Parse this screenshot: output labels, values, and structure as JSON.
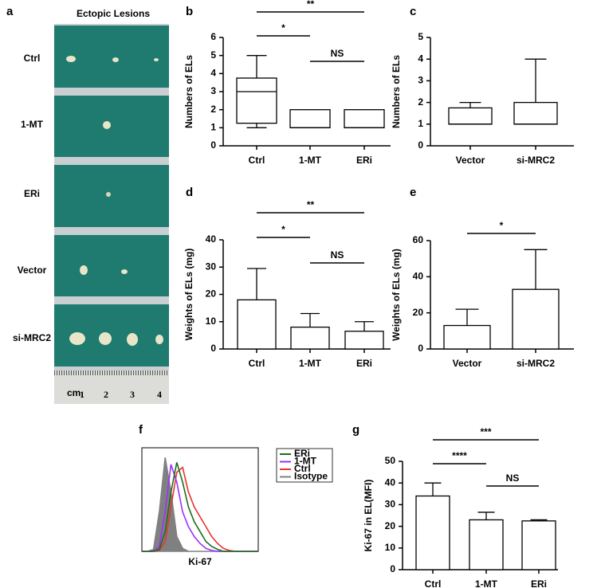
{
  "photo_panel": {
    "panel_label": "a",
    "title": "Ectopic Lesions",
    "rows": [
      "Ctrl",
      "1-MT",
      "ERi",
      "Vector",
      "si-MRC2"
    ],
    "ruler": {
      "unit": "cm",
      "numbers": [
        "1",
        "2",
        "3",
        "4"
      ]
    }
  },
  "chart_data": [
    {
      "type": "box",
      "panel_label": "b",
      "y_label": "Numbers of ELs",
      "categories": [
        "Ctrl",
        "1-MT",
        "ERi"
      ],
      "boxes": [
        {
          "min": 1,
          "q1": 1.25,
          "median": 3,
          "q3": 3.75,
          "max": 5
        },
        {
          "min": 1,
          "q1": 1,
          "median": 1,
          "q3": 2,
          "max": 2
        },
        {
          "min": 1,
          "q1": 1,
          "median": 1,
          "q3": 2,
          "max": 2
        }
      ],
      "ylim": [
        0,
        6
      ],
      "yticks": [
        0,
        1,
        2,
        3,
        4,
        5,
        6
      ],
      "color": "#000000",
      "annotations": [
        "**",
        "*",
        "NS"
      ]
    },
    {
      "type": "box",
      "panel_label": "c",
      "y_label": "Numbers of ELs",
      "categories": [
        "Vector",
        "si-MRC2"
      ],
      "boxes": [
        {
          "min": 1,
          "q1": 1,
          "median": 1,
          "q3": 1.75,
          "max": 2
        },
        {
          "min": 1,
          "q1": 1,
          "median": 1,
          "q3": 2,
          "max": 4
        }
      ],
      "ylim": [
        0,
        5
      ],
      "yticks": [
        0,
        1,
        2,
        3,
        4,
        5
      ],
      "color": "#000000",
      "annotations": []
    },
    {
      "type": "bar",
      "panel_label": "d",
      "y_label": "Weights of ELs (mg)",
      "categories": [
        "Ctrl",
        "1-MT",
        "ERi"
      ],
      "values": [
        18,
        8,
        6.5
      ],
      "errors": [
        11.5,
        5,
        3.5
      ],
      "ylim": [
        0,
        40
      ],
      "yticks": [
        0,
        10,
        20,
        30,
        40
      ],
      "color": "#000000",
      "annotations": [
        "**",
        "*",
        "NS"
      ]
    },
    {
      "type": "bar",
      "panel_label": "e",
      "y_label": "Weights of ELs (mg)",
      "categories": [
        "Vector",
        "si-MRC2"
      ],
      "values": [
        13,
        33
      ],
      "errors": [
        9,
        22
      ],
      "ylim": [
        0,
        60
      ],
      "yticks": [
        0,
        20,
        40,
        60
      ],
      "color": "#000000",
      "annotations": [
        "*"
      ]
    },
    {
      "type": "line",
      "panel_label": "f",
      "x_label": "Ki-67",
      "x": [
        0,
        5,
        10,
        15,
        20,
        25,
        30,
        35,
        40,
        45,
        50,
        55,
        60,
        65,
        70,
        75,
        80,
        85,
        90,
        95,
        100
      ],
      "xlim": [
        0,
        100
      ],
      "ylim": [
        0,
        100
      ],
      "series": [
        {
          "name": "ERi",
          "color": "#1a6e1a",
          "values": [
            0,
            0,
            0,
            2,
            20,
            60,
            90,
            70,
            45,
            30,
            20,
            10,
            5,
            2,
            0,
            0,
            0,
            0,
            0,
            0,
            0
          ]
        },
        {
          "name": "1-MT",
          "color": "#9b30ff",
          "values": [
            0,
            0,
            0,
            5,
            40,
            88,
            70,
            40,
            25,
            15,
            8,
            3,
            1,
            0,
            0,
            0,
            0,
            0,
            0,
            0,
            0
          ]
        },
        {
          "name": "Ctrl",
          "color": "#e8332e",
          "values": [
            0,
            0,
            0,
            1,
            10,
            45,
            80,
            85,
            60,
            45,
            35,
            25,
            15,
            8,
            3,
            1,
            0,
            0,
            0,
            0,
            0
          ]
        },
        {
          "name": "Isotype",
          "color": "#808080",
          "fill": true,
          "values": [
            0,
            0,
            2,
            40,
            95,
            60,
            15,
            3,
            0,
            0,
            0,
            0,
            0,
            0,
            0,
            0,
            0,
            0,
            0,
            0,
            0
          ]
        }
      ]
    },
    {
      "type": "bar",
      "panel_label": "g",
      "y_label": "Ki-67 in EL(MFI)",
      "categories": [
        "Ctrl",
        "1-MT",
        "ERi"
      ],
      "values": [
        34,
        23,
        22.5
      ],
      "errors": [
        6,
        3.5,
        0.5
      ],
      "ylim": [
        0,
        50
      ],
      "yticks": [
        0,
        10,
        20,
        30,
        40,
        50
      ],
      "color": "#000000",
      "annotations": [
        "***",
        "****",
        "NS"
      ]
    }
  ]
}
